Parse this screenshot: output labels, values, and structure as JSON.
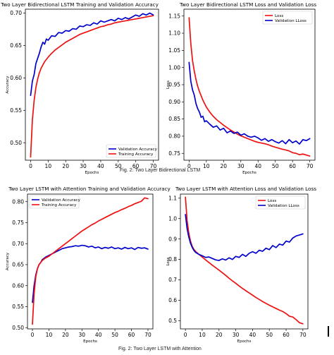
{
  "captions": {
    "fig2_top": "Fig. 2: Two Layer Bidirectional LSTM",
    "fig2_bottom": "Fig. 2: Two Layer LSTM with Attention"
  },
  "chart_data": [
    {
      "type": "line",
      "title": "Two Layer Bidirectional LSTM Training and Validation Accuracy",
      "xlabel": "Epochs",
      "ylabel": "Accuracy",
      "xlim": [
        -3,
        73
      ],
      "ylim": [
        0.473,
        0.706
      ],
      "xticks": [
        0,
        10,
        20,
        30,
        40,
        50,
        60,
        70
      ],
      "yticks": [
        0.5,
        0.55,
        0.6,
        0.65,
        0.7
      ],
      "xtick_labels": [
        "0",
        "10",
        "20",
        "30",
        "40",
        "50",
        "60",
        "70"
      ],
      "ytick_labels": [
        "0.50",
        "0.55",
        "0.60",
        "0.65",
        "0.70"
      ],
      "legend": "lower-right",
      "grid": false,
      "series": [
        {
          "name": "Validation Accuracy",
          "color": "#0000cc",
          "x": [
            0,
            1,
            2,
            3,
            4,
            5,
            6,
            7,
            8,
            9,
            10,
            12,
            14,
            16,
            18,
            20,
            22,
            24,
            26,
            28,
            30,
            32,
            34,
            36,
            38,
            40,
            42,
            44,
            46,
            48,
            50,
            52,
            54,
            56,
            58,
            60,
            62,
            64,
            66,
            68,
            70
          ],
          "y": [
            0.573,
            0.595,
            0.605,
            0.622,
            0.63,
            0.638,
            0.648,
            0.655,
            0.652,
            0.66,
            0.658,
            0.665,
            0.664,
            0.67,
            0.669,
            0.673,
            0.672,
            0.676,
            0.675,
            0.68,
            0.679,
            0.682,
            0.681,
            0.685,
            0.683,
            0.688,
            0.686,
            0.688,
            0.69,
            0.688,
            0.692,
            0.69,
            0.693,
            0.691,
            0.694,
            0.697,
            0.695,
            0.699,
            0.697,
            0.7,
            0.697
          ]
        },
        {
          "name": "Training Accuracy",
          "color": "#ee1111",
          "x": [
            0,
            1,
            2,
            3,
            4,
            5,
            6,
            8,
            10,
            12,
            14,
            16,
            18,
            20,
            22,
            24,
            26,
            28,
            30,
            32,
            34,
            36,
            38,
            40,
            42,
            44,
            46,
            48,
            50,
            52,
            54,
            56,
            58,
            60,
            62,
            64,
            66,
            68,
            70
          ],
          "y": [
            0.478,
            0.535,
            0.565,
            0.585,
            0.598,
            0.608,
            0.615,
            0.625,
            0.632,
            0.638,
            0.643,
            0.647,
            0.651,
            0.655,
            0.658,
            0.661,
            0.664,
            0.667,
            0.669,
            0.671,
            0.673,
            0.675,
            0.677,
            0.679,
            0.68,
            0.682,
            0.683,
            0.685,
            0.686,
            0.687,
            0.688,
            0.689,
            0.69,
            0.691,
            0.692,
            0.693,
            0.694,
            0.695,
            0.696
          ]
        }
      ]
    },
    {
      "type": "line",
      "title": "Two Layer Bidirectional LSTM Loss and Validation Loss",
      "xlabel": "Epochs",
      "ylabel": "Loss",
      "xlim": [
        -3,
        73
      ],
      "ylim": [
        0.73,
        1.17
      ],
      "xticks": [
        0,
        10,
        20,
        30,
        40,
        50,
        60,
        70
      ],
      "yticks": [
        0.75,
        0.8,
        0.85,
        0.9,
        0.95,
        1.0,
        1.05,
        1.1,
        1.15
      ],
      "xtick_labels": [
        "0",
        "10",
        "20",
        "30",
        "40",
        "50",
        "60",
        "70"
      ],
      "ytick_labels": [
        "0.75",
        "0.80",
        "0.85",
        "0.90",
        "0.95",
        "1.00",
        "1.05",
        "1.10",
        "1.15"
      ],
      "legend": "top-right",
      "grid": false,
      "series": [
        {
          "name": "Loss",
          "color": "#ee1111",
          "x": [
            0,
            1,
            2,
            3,
            4,
            5,
            6,
            8,
            10,
            12,
            14,
            16,
            18,
            20,
            22,
            24,
            26,
            28,
            30,
            32,
            34,
            36,
            38,
            40,
            42,
            44,
            46,
            48,
            50,
            52,
            54,
            56,
            58,
            60,
            62,
            64,
            66,
            68,
            70
          ],
          "y": [
            1.145,
            1.07,
            1.02,
            0.99,
            0.965,
            0.945,
            0.93,
            0.905,
            0.885,
            0.87,
            0.858,
            0.848,
            0.84,
            0.832,
            0.825,
            0.818,
            0.812,
            0.806,
            0.801,
            0.797,
            0.793,
            0.789,
            0.785,
            0.782,
            0.78,
            0.778,
            0.775,
            0.771,
            0.768,
            0.765,
            0.762,
            0.76,
            0.757,
            0.752,
            0.75,
            0.746,
            0.748,
            0.745,
            0.742
          ]
        },
        {
          "name": "Validation LLoss",
          "color": "#0000cc",
          "x": [
            0,
            1,
            2,
            3,
            4,
            5,
            6,
            7,
            8,
            9,
            10,
            12,
            14,
            16,
            18,
            20,
            22,
            24,
            26,
            28,
            30,
            32,
            34,
            36,
            38,
            40,
            42,
            44,
            46,
            48,
            50,
            52,
            54,
            56,
            58,
            60,
            62,
            64,
            66,
            68,
            70
          ],
          "y": [
            1.015,
            0.96,
            0.935,
            0.92,
            0.895,
            0.88,
            0.87,
            0.855,
            0.858,
            0.842,
            0.845,
            0.835,
            0.826,
            0.83,
            0.818,
            0.823,
            0.81,
            0.815,
            0.808,
            0.812,
            0.803,
            0.807,
            0.8,
            0.797,
            0.8,
            0.795,
            0.788,
            0.793,
            0.785,
            0.79,
            0.784,
            0.78,
            0.787,
            0.778,
            0.79,
            0.781,
            0.786,
            0.777,
            0.79,
            0.787,
            0.793
          ]
        }
      ]
    },
    {
      "type": "line",
      "title": "Two Layer LSTM with Attention Training and Validation Accuracy",
      "xlabel": "Epochs",
      "ylabel": "Accuracy",
      "xlim": [
        -3,
        73
      ],
      "ylim": [
        0.497,
        0.818
      ],
      "xticks": [
        0,
        10,
        20,
        30,
        40,
        50,
        60,
        70
      ],
      "yticks": [
        0.5,
        0.55,
        0.6,
        0.65,
        0.7,
        0.75,
        0.8
      ],
      "xtick_labels": [
        "0",
        "10",
        "20",
        "30",
        "40",
        "50",
        "60",
        "70"
      ],
      "ytick_labels": [
        "0.50",
        "0.55",
        "0.60",
        "0.65",
        "0.70",
        "0.75",
        "0.80"
      ],
      "legend": "top-left",
      "grid": false,
      "series": [
        {
          "name": "Validation Accuracy",
          "color": "#0000cc",
          "x": [
            0,
            1,
            2,
            3,
            4,
            5,
            6,
            7,
            8,
            10,
            12,
            14,
            16,
            18,
            20,
            22,
            24,
            26,
            28,
            30,
            32,
            34,
            36,
            38,
            40,
            42,
            44,
            46,
            48,
            50,
            52,
            54,
            56,
            58,
            60,
            62,
            64,
            66,
            68,
            70
          ],
          "y": [
            0.56,
            0.6,
            0.625,
            0.64,
            0.65,
            0.655,
            0.662,
            0.665,
            0.668,
            0.672,
            0.676,
            0.68,
            0.684,
            0.688,
            0.69,
            0.692,
            0.693,
            0.695,
            0.694,
            0.696,
            0.695,
            0.692,
            0.694,
            0.69,
            0.692,
            0.688,
            0.691,
            0.689,
            0.692,
            0.688,
            0.69,
            0.687,
            0.691,
            0.688,
            0.69,
            0.686,
            0.691,
            0.689,
            0.69,
            0.687
          ]
        },
        {
          "name": "Training Accuracy",
          "color": "#ee1111",
          "x": [
            0,
            1,
            2,
            3,
            4,
            5,
            6,
            8,
            10,
            12,
            14,
            16,
            18,
            20,
            22,
            24,
            26,
            28,
            30,
            32,
            34,
            36,
            38,
            40,
            42,
            44,
            46,
            48,
            50,
            52,
            54,
            56,
            58,
            60,
            62,
            64,
            66,
            68,
            70
          ],
          "y": [
            0.508,
            0.58,
            0.62,
            0.64,
            0.65,
            0.655,
            0.66,
            0.666,
            0.67,
            0.676,
            0.682,
            0.688,
            0.694,
            0.7,
            0.706,
            0.712,
            0.718,
            0.724,
            0.73,
            0.735,
            0.74,
            0.745,
            0.749,
            0.754,
            0.758,
            0.762,
            0.766,
            0.77,
            0.774,
            0.777,
            0.781,
            0.784,
            0.788,
            0.791,
            0.795,
            0.798,
            0.801,
            0.809,
            0.807
          ]
        }
      ]
    },
    {
      "type": "line",
      "title": "Two Layer LSTM with Attention Loss and Validation Loss",
      "xlabel": "Epochs",
      "ylabel": "Loss",
      "xlim": [
        -3,
        73
      ],
      "ylim": [
        0.46,
        1.12
      ],
      "xticks": [
        0,
        10,
        20,
        30,
        40,
        50,
        60,
        70
      ],
      "yticks": [
        0.5,
        0.6,
        0.7,
        0.8,
        0.9,
        1.0,
        1.1
      ],
      "xtick_labels": [
        "0",
        "10",
        "20",
        "30",
        "40",
        "50",
        "60",
        "70"
      ],
      "ytick_labels": [
        "0.5",
        "0.6",
        "0.7",
        "0.8",
        "0.9",
        "1.0",
        "1.1"
      ],
      "legend": "top-right",
      "grid": false,
      "series": [
        {
          "name": "Loss",
          "color": "#ee1111",
          "x": [
            0,
            1,
            2,
            3,
            4,
            5,
            6,
            8,
            10,
            12,
            14,
            16,
            18,
            20,
            22,
            24,
            26,
            28,
            30,
            32,
            34,
            36,
            38,
            40,
            42,
            44,
            46,
            48,
            50,
            52,
            54,
            56,
            58,
            60,
            62,
            64,
            66,
            68,
            70
          ],
          "y": [
            1.105,
            0.99,
            0.93,
            0.89,
            0.865,
            0.85,
            0.84,
            0.825,
            0.812,
            0.798,
            0.785,
            0.772,
            0.76,
            0.748,
            0.735,
            0.722,
            0.708,
            0.695,
            0.683,
            0.67,
            0.658,
            0.647,
            0.636,
            0.625,
            0.614,
            0.604,
            0.594,
            0.585,
            0.576,
            0.568,
            0.56,
            0.552,
            0.545,
            0.535,
            0.522,
            0.518,
            0.505,
            0.49,
            0.485
          ]
        },
        {
          "name": "Validation LLoss",
          "color": "#0000cc",
          "x": [
            0,
            1,
            2,
            3,
            4,
            5,
            6,
            8,
            10,
            12,
            14,
            16,
            18,
            20,
            22,
            24,
            26,
            28,
            30,
            32,
            34,
            36,
            38,
            40,
            42,
            44,
            46,
            48,
            50,
            52,
            54,
            56,
            58,
            60,
            62,
            64,
            66,
            68,
            70
          ],
          "y": [
            1.02,
            0.95,
            0.91,
            0.88,
            0.86,
            0.845,
            0.835,
            0.825,
            0.818,
            0.81,
            0.812,
            0.805,
            0.798,
            0.795,
            0.803,
            0.797,
            0.808,
            0.8,
            0.815,
            0.81,
            0.825,
            0.815,
            0.83,
            0.838,
            0.83,
            0.845,
            0.84,
            0.855,
            0.848,
            0.868,
            0.858,
            0.875,
            0.87,
            0.89,
            0.885,
            0.905,
            0.915,
            0.92,
            0.925
          ]
        }
      ]
    }
  ]
}
